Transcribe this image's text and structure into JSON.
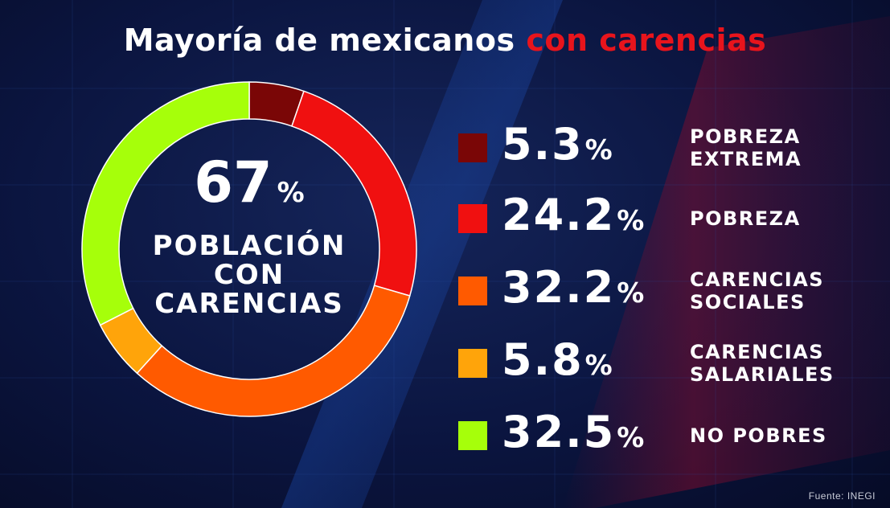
{
  "title": {
    "main": "Mayoría de mexicanos",
    "accent": "con carencias"
  },
  "center": {
    "value": "67",
    "symbol": "%",
    "label_lines": [
      "POBLACIÓN",
      "CON",
      "CARENCIAS"
    ]
  },
  "source": "Fuente: INEGI",
  "colors": {
    "background": "#0b1540",
    "accent_text": "#e8141c",
    "pobreza_extrema": "#7a0606",
    "pobreza": "#f01010",
    "carencias_sociales": "#ff5a00",
    "carencias_salariales": "#ffa40a",
    "no_pobres": "#a6ff0a"
  },
  "chart_data": {
    "type": "pie",
    "donut": true,
    "title": "Mayoría de mexicanos con carencias",
    "center_text": "67% POBLACIÓN CON CARENCIAS",
    "slices": [
      {
        "value": 5.3,
        "display": "5.3",
        "unit": "%",
        "label_lines": [
          "POBREZA",
          "EXTREMA"
        ],
        "color": "#7a0606"
      },
      {
        "value": 24.2,
        "display": "24.2",
        "unit": "%",
        "label_lines": [
          "POBREZA"
        ],
        "color": "#f01010"
      },
      {
        "value": 32.2,
        "display": "32.2",
        "unit": "%",
        "label_lines": [
          "CARENCIAS",
          "SOCIALES"
        ],
        "color": "#ff5a00"
      },
      {
        "value": 5.8,
        "display": "5.8",
        "unit": "%",
        "label_lines": [
          "CARENCIAS",
          "SALARIALES"
        ],
        "color": "#ffa40a"
      },
      {
        "value": 32.5,
        "display": "32.5",
        "unit": "%",
        "label_lines": [
          "NO POBRES"
        ],
        "color": "#a6ff0a"
      }
    ],
    "legend": "right"
  }
}
